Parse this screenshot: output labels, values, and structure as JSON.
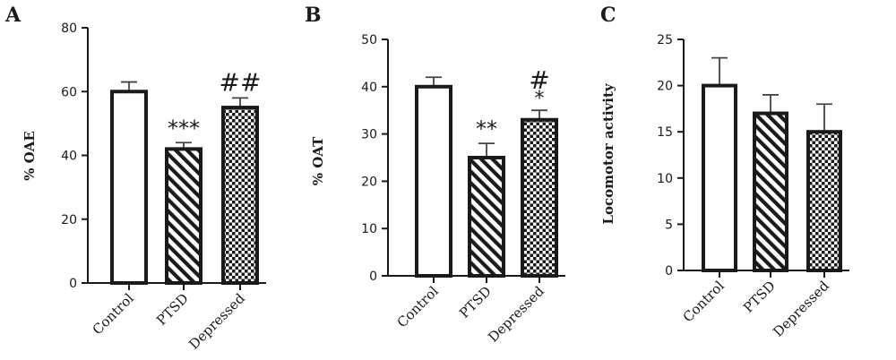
{
  "chart_data": [
    {
      "type": "bar",
      "panel": "A",
      "ylabel": "% OAE",
      "ylim": [
        0,
        80
      ],
      "yticks": [
        "0",
        "20",
        "40",
        "60",
        "80"
      ],
      "categories": [
        "Control",
        "PTSD",
        "Depressed"
      ],
      "values": [
        60,
        42,
        55
      ],
      "errors": [
        3,
        2,
        3
      ],
      "annotations": [
        "",
        "***",
        "##"
      ],
      "annotations_below": [
        "",
        "",
        ""
      ],
      "patterns": [
        "none",
        "diagonal",
        "checker"
      ]
    },
    {
      "type": "bar",
      "panel": "B",
      "ylabel": "% OAT",
      "ylim": [
        0,
        50
      ],
      "yticks": [
        "0",
        "10",
        "20",
        "30",
        "40",
        "50"
      ],
      "categories": [
        "Control",
        "PTSD",
        "Depressed"
      ],
      "values": [
        40,
        25,
        33
      ],
      "errors": [
        2,
        3,
        2
      ],
      "annotations": [
        "",
        "**",
        "#"
      ],
      "annotations_below": [
        "",
        "",
        "*"
      ],
      "patterns": [
        "none",
        "diagonal",
        "checker"
      ]
    },
    {
      "type": "bar",
      "panel": "C",
      "ylabel": "Locomotor activity",
      "ylim": [
        0,
        25
      ],
      "yticks": [
        "0",
        "5",
        "10",
        "15",
        "20",
        "25"
      ],
      "categories": [
        "Control",
        "PTSD",
        "Depressed"
      ],
      "values": [
        20,
        17,
        15
      ],
      "errors": [
        3,
        2,
        3
      ],
      "annotations": [
        "",
        "",
        ""
      ],
      "annotations_below": [
        "",
        "",
        ""
      ],
      "patterns": [
        "none",
        "diagonal",
        "checker"
      ]
    }
  ],
  "colors": {
    "ink": "#1a1a1a",
    "error_bar": "#444444",
    "bar_fill": "#ffffff"
  }
}
